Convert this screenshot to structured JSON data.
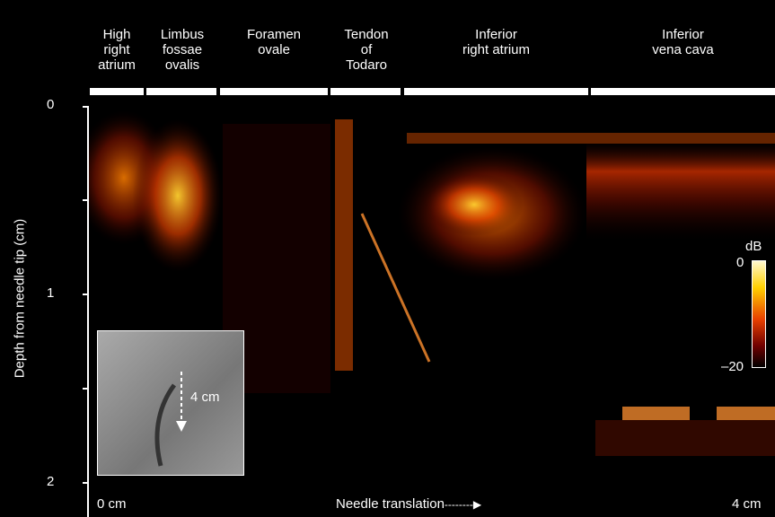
{
  "regions": [
    {
      "label_lines": [
        "High",
        "right",
        "atrium"
      ]
    },
    {
      "label_lines": [
        "Limbus",
        "fossae",
        "ovalis"
      ]
    },
    {
      "label_lines": [
        "Foramen",
        "ovale"
      ]
    },
    {
      "label_lines": [
        "Tendon",
        "of",
        "Todaro"
      ]
    },
    {
      "label_lines": [
        "Inferior",
        "right atrium"
      ]
    },
    {
      "label_lines": [
        "Inferior",
        "vena cava"
      ]
    }
  ],
  "y_axis": {
    "label": "Depth from needle tip (cm)",
    "ticks": [
      "0",
      "1",
      "2"
    ]
  },
  "x_axis": {
    "start_label": "0 cm",
    "end_label": "4 cm",
    "title": "Needle translation"
  },
  "inset": {
    "arrow_label": "4 cm"
  },
  "colorbar": {
    "unit": "dB",
    "max": "0",
    "min": "–20"
  },
  "chart_data": {
    "type": "heatmap",
    "xlabel": "Needle translation",
    "ylabel": "Depth from needle tip (cm)",
    "xlim": [
      0,
      4
    ],
    "ylim": [
      0,
      2
    ],
    "y_ticks": [
      0,
      1,
      2
    ],
    "color_scale": {
      "unit": "dB",
      "range": [
        -20,
        0
      ],
      "colors": [
        "#000000",
        "#700000",
        "#e84000",
        "#ffd000",
        "#fff8d0"
      ]
    },
    "annotations": [
      "High right atrium",
      "Limbus fossae ovalis",
      "Foramen ovale",
      "Tendon of Todaro",
      "Inferior right atrium",
      "Inferior vena cava"
    ]
  }
}
